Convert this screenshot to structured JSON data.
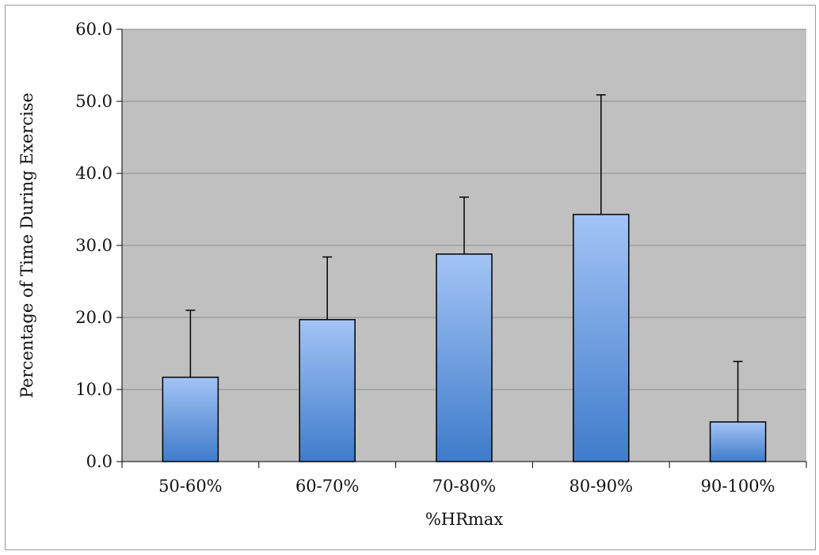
{
  "chart_data": {
    "type": "bar",
    "title": "",
    "xlabel": "%HRmax",
    "ylabel": "Percentage of Time During Exercise",
    "categories": [
      "50-60%",
      "60-70%",
      "70-80%",
      "80-90%",
      "90-100%"
    ],
    "values": [
      11.7,
      19.7,
      28.8,
      34.3,
      5.5
    ],
    "error_plus": [
      9.3,
      8.7,
      7.9,
      16.6,
      8.4
    ],
    "ylim": [
      0,
      60
    ],
    "yticks": [
      "0.0",
      "10.0",
      "20.0",
      "30.0",
      "40.0",
      "50.0",
      "60.0"
    ],
    "grid": "horizontal",
    "legend": "none",
    "colors": {
      "plot_background": "#c0c0c0",
      "bar_top": "#a3c4f5",
      "bar_bottom": "#3f7ccb",
      "bar_stroke": "#000000",
      "gridline": "#8c8c8c"
    }
  }
}
